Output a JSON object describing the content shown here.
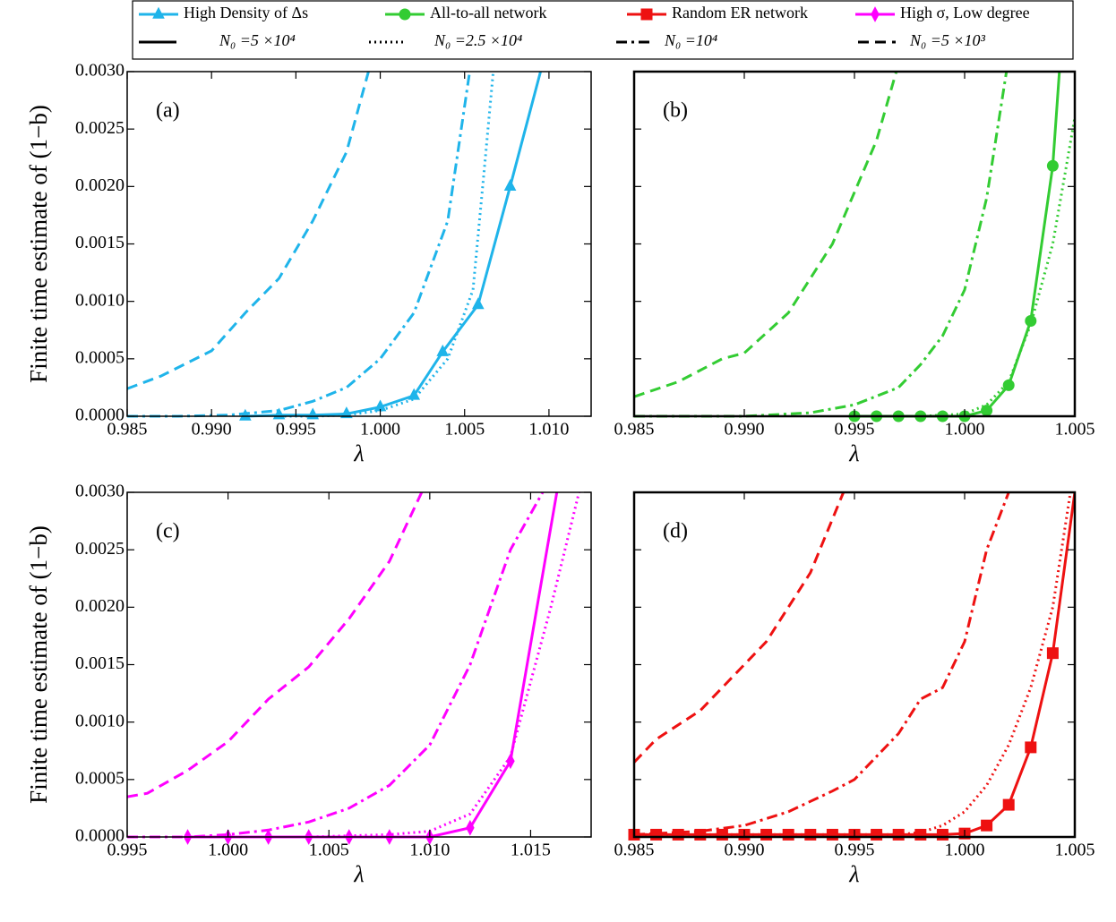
{
  "legend": {
    "markers": [
      {
        "label": "High Density of Δs",
        "color": "#1fb4ea",
        "marker": "triangle"
      },
      {
        "label": "All-to-all network",
        "color": "#33cc33",
        "marker": "circle"
      },
      {
        "label": "Random ER network",
        "color": "#ee1111",
        "marker": "square"
      },
      {
        "label": "High σ, Low degree",
        "color": "#ff00ff",
        "marker": "diamond"
      }
    ],
    "styles": [
      {
        "label": "N₀ =5 ×10⁴",
        "dash": "solid"
      },
      {
        "label": "N₀ =2.5 ×10⁴",
        "dash": "dotted"
      },
      {
        "label": "N₀ =10⁴",
        "dash": "dashdot"
      },
      {
        "label": "N₀ =5 ×10³",
        "dash": "dashed"
      }
    ]
  },
  "chart_data": [
    {
      "type": "line",
      "label": "(a)",
      "xlabel": "λ",
      "ylabel": "Finite time estimate of (1−b)",
      "xlim": [
        0.985,
        1.0125
      ],
      "ylim": [
        0,
        0.003
      ],
      "xticks": [
        0.985,
        {
          "value": 0.99,
          "label": "0.990"
        },
        0.995,
        {
          "value": 1,
          "label": "1.000"
        },
        1.005,
        {
          "value": 1.01,
          "label": "1.010"
        }
      ],
      "yticks": [
        {
          "value": 0,
          "label": "0.0000"
        },
        0.0005,
        {
          "value": 0.001,
          "label": "0.0010"
        },
        0.0015,
        {
          "value": 0.002,
          "label": "0.0020"
        },
        0.0025,
        {
          "value": 0.003,
          "label": "0.0030"
        }
      ],
      "series": [
        {
          "color": "#1fb4ea",
          "dash": "solid",
          "marker": "triangle",
          "x": [
            0.992,
            0.994,
            0.996,
            0.998,
            1.0,
            1.002,
            1.0037,
            1.0058,
            1.0077,
            1.0095
          ],
          "values": [
            0,
            1e-05,
            1e-05,
            2e-05,
            8e-05,
            0.00018,
            0.00056,
            0.00097,
            0.002,
            0.003
          ]
        },
        {
          "color": "#1fb4ea",
          "dash": "dotted",
          "x": [
            0.994,
            0.996,
            0.998,
            1.0,
            1.002,
            1.004,
            1.0055,
            1.0062,
            1.0067
          ],
          "values": [
            0,
            0,
            1e-05,
            5e-05,
            0.00015,
            0.0005,
            0.0011,
            0.0022,
            0.003
          ]
        },
        {
          "color": "#1fb4ea",
          "dash": "dashdot",
          "x": [
            0.985,
            0.988,
            0.991,
            0.994,
            0.996,
            0.998,
            1.0,
            1.002,
            1.004,
            1.0053
          ],
          "values": [
            0,
            0,
            1e-05,
            5e-05,
            0.00013,
            0.00025,
            0.0005,
            0.0009,
            0.0017,
            0.003
          ]
        },
        {
          "color": "#1fb4ea",
          "dash": "dashed",
          "x": [
            0.985,
            0.987,
            0.99,
            0.992,
            0.994,
            0.996,
            0.998,
            0.9993
          ],
          "values": [
            0.00024,
            0.00035,
            0.00057,
            0.0009,
            0.0012,
            0.0017,
            0.0023,
            0.003
          ]
        }
      ]
    },
    {
      "type": "line",
      "label": "(b)",
      "xlabel": "λ",
      "xlim": [
        0.985,
        1.005
      ],
      "ylim": [
        0,
        0.003
      ],
      "xticks": [
        0.985,
        {
          "value": 0.99,
          "label": "0.990"
        },
        0.995,
        {
          "value": 1,
          "label": "1.000"
        },
        1.005
      ],
      "yticks": [
        0,
        0.0005,
        0.001,
        0.0015,
        0.002,
        0.0025,
        0.003
      ],
      "series": [
        {
          "color": "#33cc33",
          "dash": "solid",
          "marker": "circle",
          "x": [
            0.995,
            0.996,
            0.997,
            0.998,
            0.999,
            1.0,
            1.001,
            1.002,
            1.003,
            1.004,
            1.0043
          ],
          "values": [
            0,
            0,
            0,
            0,
            0,
            0,
            5e-05,
            0.00027,
            0.00083,
            0.00218,
            0.003
          ]
        },
        {
          "color": "#33cc33",
          "dash": "dotted",
          "x": [
            0.995,
            0.998,
            1.0,
            1.001,
            1.002,
            1.003,
            1.004,
            1.005
          ],
          "values": [
            0,
            0,
            2e-05,
            0.0001,
            0.0003,
            0.0008,
            0.0015,
            0.0026
          ]
        },
        {
          "color": "#33cc33",
          "dash": "dashdot",
          "x": [
            0.985,
            0.99,
            0.993,
            0.995,
            0.997,
            0.998,
            0.999,
            1.0,
            1.001,
            1.0019
          ],
          "values": [
            0,
            0,
            3e-05,
            0.0001,
            0.00025,
            0.00045,
            0.0007,
            0.0011,
            0.0019,
            0.003
          ]
        },
        {
          "color": "#33cc33",
          "dash": "dashed",
          "x": [
            0.985,
            0.987,
            0.989,
            0.99,
            0.992,
            0.994,
            0.996,
            0.9969
          ],
          "values": [
            0.00017,
            0.0003,
            0.0005,
            0.00055,
            0.0009,
            0.0015,
            0.0024,
            0.003
          ]
        }
      ]
    },
    {
      "type": "line",
      "label": "(c)",
      "xlabel": "λ",
      "ylabel": "Finite time estimate of (1−b)",
      "xlim": [
        0.995,
        1.018
      ],
      "ylim": [
        0,
        0.003
      ],
      "xticks": [
        0.995,
        {
          "value": 1,
          "label": "1.000"
        },
        1.005,
        {
          "value": 1.01,
          "label": "1.010"
        },
        1.015
      ],
      "yticks": [
        {
          "value": 0,
          "label": "0.0000"
        },
        0.0005,
        {
          "value": 0.001,
          "label": "0.0010"
        },
        0.0015,
        {
          "value": 0.002,
          "label": "0.0020"
        },
        0.0025,
        {
          "value": 0.003,
          "label": "0.0030"
        }
      ],
      "series": [
        {
          "color": "#ff00ff",
          "dash": "solid",
          "marker": "diamond",
          "x": [
            0.998,
            1.0,
            1.002,
            1.004,
            1.006,
            1.008,
            1.01,
            1.012,
            1.014,
            1.0163
          ],
          "values": [
            0,
            0,
            0,
            0,
            0,
            0,
            0,
            8e-05,
            0.00066,
            0.003
          ]
        },
        {
          "color": "#ff00ff",
          "dash": "dotted",
          "x": [
            0.998,
            1.004,
            1.008,
            1.01,
            1.012,
            1.014,
            1.016,
            1.0174
          ],
          "values": [
            0,
            0,
            2e-05,
            5e-05,
            0.0002,
            0.0007,
            0.002,
            0.003
          ]
        },
        {
          "color": "#ff00ff",
          "dash": "dashdot",
          "x": [
            0.995,
            0.998,
            1.0,
            1.002,
            1.004,
            1.006,
            1.008,
            1.01,
            1.012,
            1.014,
            1.0156
          ],
          "values": [
            0,
            0,
            2e-05,
            6e-05,
            0.00013,
            0.00025,
            0.00045,
            0.0008,
            0.0015,
            0.0025,
            0.003
          ]
        },
        {
          "color": "#ff00ff",
          "dash": "dashed",
          "x": [
            0.995,
            0.996,
            0.998,
            1.0,
            1.002,
            1.004,
            1.006,
            1.008,
            1.0096
          ],
          "values": [
            0.00035,
            0.00038,
            0.00058,
            0.00083,
            0.0012,
            0.00148,
            0.0019,
            0.0024,
            0.003
          ]
        }
      ]
    },
    {
      "type": "line",
      "label": "(d)",
      "xlabel": "λ",
      "xlim": [
        0.985,
        1.005
      ],
      "ylim": [
        0,
        0.003
      ],
      "xticks": [
        0.985,
        {
          "value": 0.99,
          "label": "0.990"
        },
        0.995,
        {
          "value": 1,
          "label": "1.000"
        },
        1.005
      ],
      "yticks": [
        0,
        0.0005,
        0.001,
        0.0015,
        0.002,
        0.0025,
        0.003
      ],
      "series": [
        {
          "color": "#ee1111",
          "dash": "solid",
          "marker": "square",
          "x": [
            0.985,
            0.986,
            0.987,
            0.988,
            0.989,
            0.99,
            0.991,
            0.992,
            0.993,
            0.994,
            0.995,
            0.996,
            0.997,
            0.998,
            0.999,
            1.0,
            1.001,
            1.002,
            1.003,
            1.004,
            1.005
          ],
          "values": [
            2e-05,
            2e-05,
            2e-05,
            2e-05,
            2e-05,
            2e-05,
            2e-05,
            2e-05,
            2e-05,
            2e-05,
            2e-05,
            2e-05,
            2e-05,
            2e-05,
            2e-05,
            3e-05,
            0.0001,
            0.00028,
            0.00078,
            0.0016,
            0.003
          ]
        },
        {
          "color": "#ee1111",
          "dash": "dotted",
          "x": [
            0.985,
            0.997,
            0.998,
            0.999,
            1.0,
            1.001,
            1.002,
            1.003,
            1.004,
            1.0048
          ],
          "values": [
            2e-05,
            2e-05,
            4e-05,
            0.0001,
            0.00022,
            0.00045,
            0.0008,
            0.0013,
            0.002,
            0.003
          ]
        },
        {
          "color": "#ee1111",
          "dash": "dashdot",
          "x": [
            0.985,
            0.988,
            0.99,
            0.992,
            0.994,
            0.995,
            0.997,
            0.998,
            0.999,
            1.0,
            1.001,
            1.002
          ],
          "values": [
            2e-05,
            5e-05,
            0.0001,
            0.00022,
            0.0004,
            0.0005,
            0.0009,
            0.0012,
            0.0013,
            0.0017,
            0.0025,
            0.003
          ]
        },
        {
          "color": "#ee1111",
          "dash": "dashed",
          "x": [
            0.985,
            0.986,
            0.988,
            0.99,
            0.991,
            0.993,
            0.9945
          ],
          "values": [
            0.00065,
            0.00085,
            0.0011,
            0.0015,
            0.0017,
            0.0023,
            0.003
          ]
        }
      ]
    }
  ]
}
